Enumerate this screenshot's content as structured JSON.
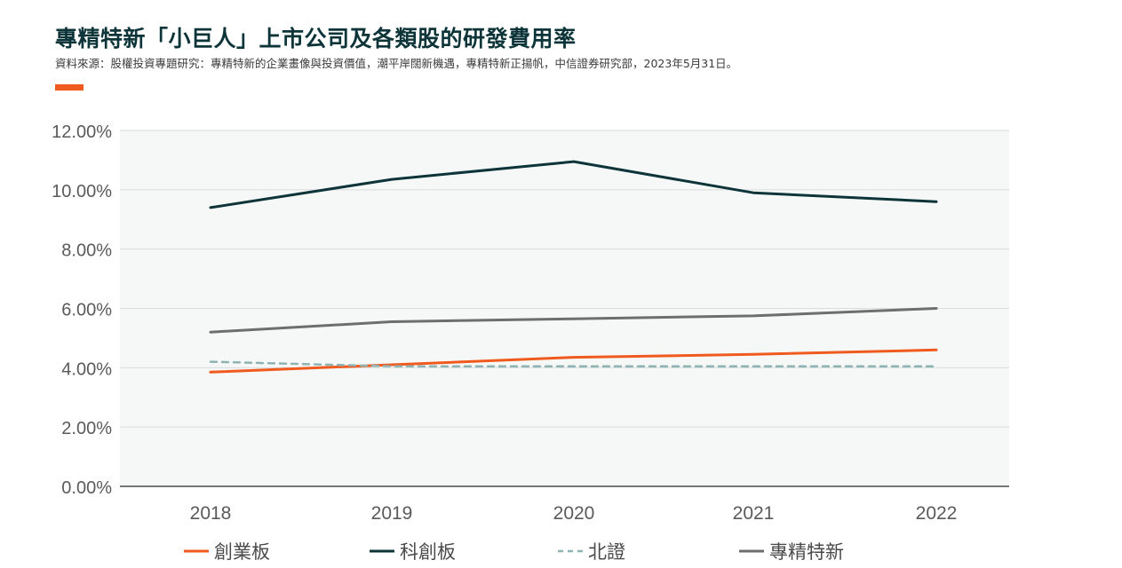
{
  "header": {
    "title": "專精特新「小巨人」上市公司及各類股的研發費用率",
    "source": "資料來源：股權投資專題研究：專精特新的企業畫像與投資價值，潮平岸闊新機遇，專精特新正揚帆，中信證券研究部，2023年5月31日。"
  },
  "colors": {
    "accent": "#f15a1f",
    "plot_bg": "#f6f8f7",
    "grid": "#d9dcdc",
    "axis": "#777777"
  },
  "chart_data": {
    "type": "line",
    "title": "專精特新「小巨人」上市公司及各類股的研發費用率",
    "xlabel": "",
    "ylabel": "",
    "categories": [
      "2018",
      "2019",
      "2020",
      "2021",
      "2022"
    ],
    "ylim": [
      0,
      12
    ],
    "yticks": [
      "0.00%",
      "2.00%",
      "4.00%",
      "6.00%",
      "8.00%",
      "10.00%",
      "12.00%"
    ],
    "grid": true,
    "legend_position": "bottom",
    "series": [
      {
        "name": "創業板",
        "color": "#f15a1f",
        "dash": "solid",
        "values": [
          3.85,
          4.1,
          4.35,
          4.45,
          4.6
        ]
      },
      {
        "name": "科創板",
        "color": "#0d3539",
        "dash": "solid",
        "values": [
          9.4,
          10.35,
          10.95,
          9.9,
          9.6
        ]
      },
      {
        "name": "北證",
        "color": "#8fb3b3",
        "dash": "dashed",
        "values": [
          4.2,
          4.05,
          4.05,
          4.05,
          4.05
        ]
      },
      {
        "name": "專精特新",
        "color": "#6d6e6e",
        "dash": "solid",
        "values": [
          5.2,
          5.55,
          5.65,
          5.75,
          6.0
        ]
      }
    ]
  }
}
